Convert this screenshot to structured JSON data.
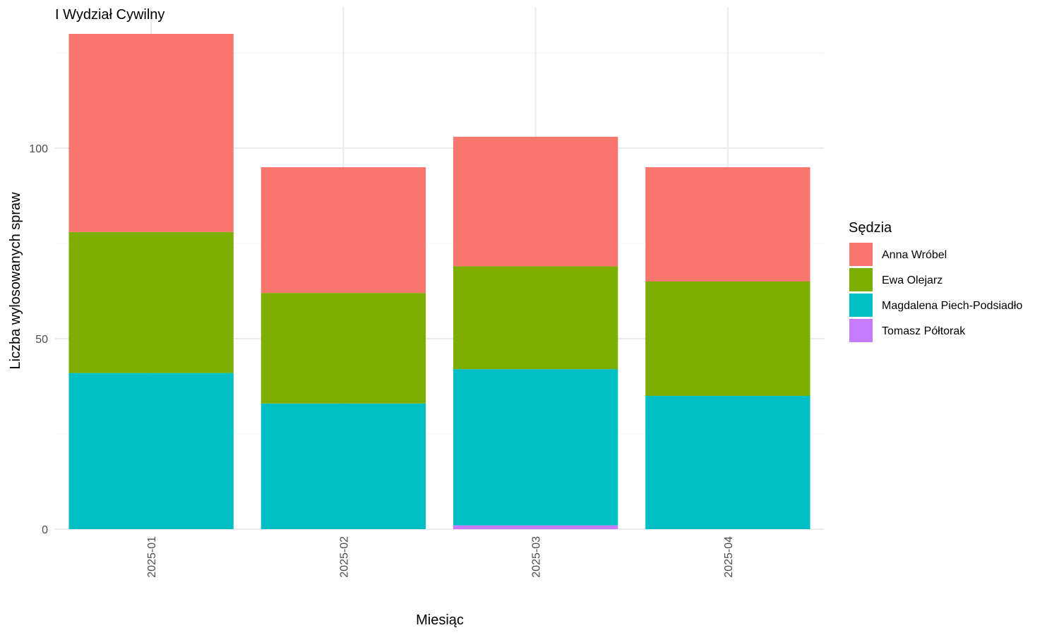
{
  "chart_data": {
    "type": "bar",
    "stacked": true,
    "title": "I Wydział Cywilny",
    "xlabel": "Miesiąc",
    "ylabel": "Liczba wylosowanych spraw",
    "categories": [
      "2025-01",
      "2025-02",
      "2025-03",
      "2025-04"
    ],
    "ylim": [
      0,
      130
    ],
    "yticks": [
      0,
      50,
      100
    ],
    "grid": true,
    "legend": {
      "title": "Sędzia",
      "position": "right"
    },
    "series": [
      {
        "name": "Anna Wróbel",
        "color": "#F8766D",
        "values": [
          52,
          33,
          34,
          30
        ]
      },
      {
        "name": "Ewa Olejarz",
        "color": "#7CAE00",
        "values": [
          37,
          29,
          27,
          30
        ]
      },
      {
        "name": "Magdalena Piech-Podsiadło",
        "color": "#00BFC4",
        "values": [
          41,
          33,
          41,
          35
        ]
      },
      {
        "name": "Tomasz Półtorak",
        "color": "#C77CFF",
        "values": [
          0,
          0,
          1,
          0
        ]
      }
    ]
  }
}
